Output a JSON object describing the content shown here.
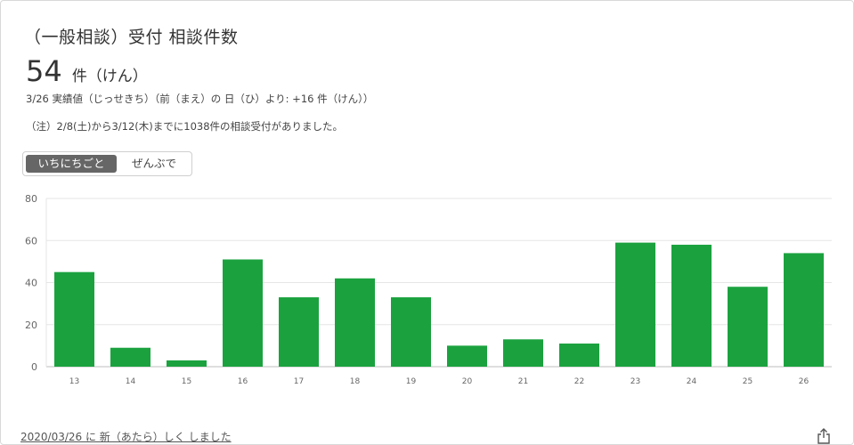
{
  "title": "（一般相談）受付 相談件数",
  "summary": {
    "value": "54",
    "unit": "件（けん）",
    "delta_text": "3/26 実績値（じっせきち）（前（まえ）の 日（ひ）より: +16 件（けん））"
  },
  "note": "（注）2/8(土)から3/12(木)までに1038件の相談受付がありました。",
  "toggle": {
    "daily_label": "いちにちごと",
    "total_label": "ぜんぶで",
    "selected": "daily"
  },
  "footer": {
    "updated_text": "2020/03/26 に 新（あたら）しく しました"
  },
  "icons": {
    "share": "share-icon"
  },
  "colors": {
    "bar": "#1ba23f",
    "grid": "#e6e6e6",
    "axis": "#bdbdbd",
    "toggle_active": "#666666"
  },
  "chart_data": {
    "type": "bar",
    "categories": [
      "13",
      "14",
      "15",
      "16",
      "17",
      "18",
      "19",
      "20",
      "21",
      "22",
      "23",
      "24",
      "25",
      "26"
    ],
    "values": [
      45,
      9,
      3,
      51,
      33,
      42,
      33,
      10,
      13,
      11,
      59,
      58,
      38,
      54
    ],
    "yticks": [
      "0",
      "20",
      "40",
      "60",
      "80"
    ],
    "ylim": [
      0,
      80
    ],
    "grid": true,
    "legend": "none",
    "title": "",
    "xlabel": "",
    "ylabel": ""
  }
}
